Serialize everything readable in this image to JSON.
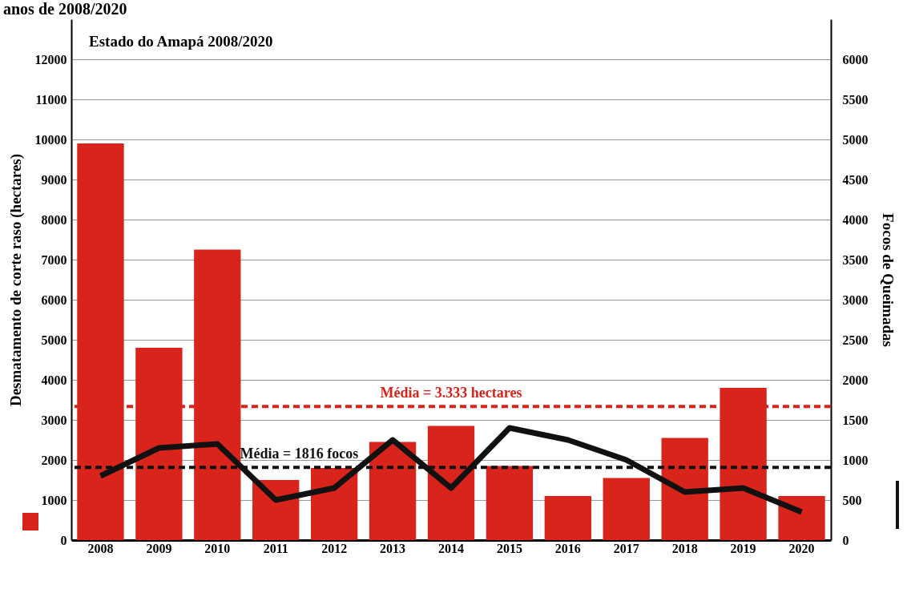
{
  "chart_data": {
    "type": "bar",
    "title": "Estado do Amapá 2008/2020",
    "annotations": [
      "anos de 2008/2020"
    ],
    "categories": [
      "2008",
      "2009",
      "2010",
      "2011",
      "2012",
      "2013",
      "2014",
      "2015",
      "2016",
      "2017",
      "2018",
      "2019",
      "2020"
    ],
    "series": [
      {
        "color": "#d9241c",
        "values": [
          9900,
          4800,
          7250,
          1500,
          1800,
          2450,
          2850,
          1850,
          1100,
          1550,
          2550,
          3800,
          1100
        ]
      },
      {
        "type": "line",
        "axis": "y2",
        "color": "#111111",
        "values": [
          800,
          1150,
          1200,
          500,
          650,
          1250,
          650,
          1400,
          1250,
          1000,
          600,
          650,
          350
        ]
      }
    ],
    "ylabel": "Desmatamento de corte raso (hectares)",
    "y2label": "Focos de Queimadas",
    "ylim": [
      0,
      13000
    ],
    "yticks": [
      0,
      1000,
      2000,
      3000,
      4000,
      5000,
      6000,
      7000,
      8000,
      9000,
      10000,
      11000,
      12000
    ],
    "y2lim": [
      0,
      6500
    ],
    "y2ticks": [
      0,
      500,
      1000,
      1500,
      2000,
      2500,
      3000,
      3500,
      4000,
      4500,
      5000,
      5500,
      6000
    ],
    "grid": "y",
    "line_style": "solid",
    "ref_lines": [
      {
        "axis": "y",
        "value": 3333,
        "label": "Média = 3.333 hectares",
        "color": "#d9241c",
        "line_style": "dashed"
      },
      {
        "axis": "y",
        "value": 1816,
        "label": "Média = 1816 focos",
        "color": "#111111",
        "line_style": "dashed"
      }
    ]
  }
}
